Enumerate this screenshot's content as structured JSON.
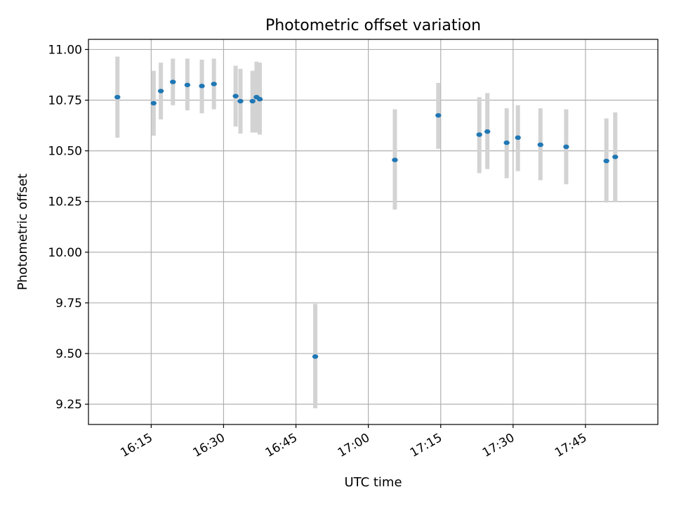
{
  "chart_data": {
    "type": "scatter",
    "title": "Photometric offset variation",
    "xlabel": "UTC time",
    "ylabel": "Photometric offset",
    "xlim": [
      "16:02",
      "18:00"
    ],
    "ylim": [
      9.15,
      11.05
    ],
    "x_ticks": [
      "16:15",
      "16:30",
      "16:45",
      "17:00",
      "17:15",
      "17:30",
      "17:45"
    ],
    "y_ticks": [
      "9.25",
      "9.50",
      "9.75",
      "10.00",
      "10.25",
      "10.50",
      "10.75",
      "11.00"
    ],
    "grid": true,
    "point_color": "#1f77b4",
    "errorbar_color": "#d3d3d3",
    "points": [
      {
        "x": "16:08:00",
        "y": 10.765,
        "ymin": 10.565,
        "ymax": 10.965
      },
      {
        "x": "16:15:30",
        "y": 10.735,
        "ymin": 10.575,
        "ymax": 10.895
      },
      {
        "x": "16:17:00",
        "y": 10.795,
        "ymin": 10.655,
        "ymax": 10.935
      },
      {
        "x": "16:19:30",
        "y": 10.84,
        "ymin": 10.725,
        "ymax": 10.955
      },
      {
        "x": "16:22:30",
        "y": 10.825,
        "ymin": 10.7,
        "ymax": 10.955
      },
      {
        "x": "16:25:30",
        "y": 10.82,
        "ymin": 10.685,
        "ymax": 10.95
      },
      {
        "x": "16:28:00",
        "y": 10.83,
        "ymin": 10.705,
        "ymax": 10.955
      },
      {
        "x": "16:32:30",
        "y": 10.77,
        "ymin": 10.62,
        "ymax": 10.92
      },
      {
        "x": "16:33:30",
        "y": 10.745,
        "ymin": 10.585,
        "ymax": 10.905
      },
      {
        "x": "16:36:00",
        "y": 10.745,
        "ymin": 10.59,
        "ymax": 10.895
      },
      {
        "x": "16:36:50",
        "y": 10.765,
        "ymin": 10.59,
        "ymax": 10.94
      },
      {
        "x": "16:37:30",
        "y": 10.755,
        "ymin": 10.58,
        "ymax": 10.935
      },
      {
        "x": "16:49:00",
        "y": 9.485,
        "ymin": 9.23,
        "ymax": 9.745
      },
      {
        "x": "17:05:30",
        "y": 10.455,
        "ymin": 10.21,
        "ymax": 10.705
      },
      {
        "x": "17:14:30",
        "y": 10.675,
        "ymin": 10.51,
        "ymax": 10.835
      },
      {
        "x": "17:23:00",
        "y": 10.58,
        "ymin": 10.39,
        "ymax": 10.765
      },
      {
        "x": "17:24:40",
        "y": 10.595,
        "ymin": 10.41,
        "ymax": 10.785
      },
      {
        "x": "17:28:40",
        "y": 10.54,
        "ymin": 10.365,
        "ymax": 10.71
      },
      {
        "x": "17:31:00",
        "y": 10.565,
        "ymin": 10.4,
        "ymax": 10.725
      },
      {
        "x": "17:35:40",
        "y": 10.53,
        "ymin": 10.355,
        "ymax": 10.71
      },
      {
        "x": "17:41:00",
        "y": 10.52,
        "ymin": 10.335,
        "ymax": 10.705
      },
      {
        "x": "17:49:20",
        "y": 10.45,
        "ymin": 10.245,
        "ymax": 10.66
      },
      {
        "x": "17:51:10",
        "y": 10.47,
        "ymin": 10.25,
        "ymax": 10.69
      }
    ]
  }
}
